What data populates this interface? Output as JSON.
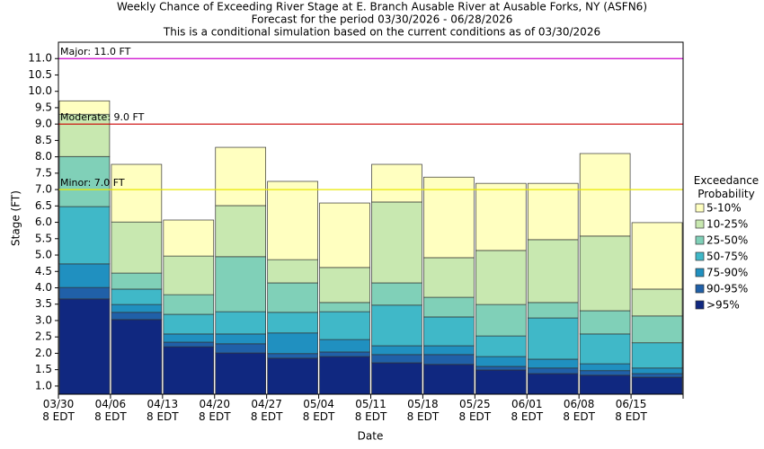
{
  "chart_data": {
    "type": "floating-bar",
    "title": "Weekly Chance of Exceeding River Stage at E. Branch Ausable River at Ausable Forks, NY (ASFN6)",
    "subtitle": "Forecast for the period 03/30/2026 - 06/28/2026",
    "note": "This is a conditional simulation based on the current conditions as of 03/30/2026",
    "x_label": "Date",
    "y_label": "Stage (FT)",
    "legend_title": "Exceedance\nProbability",
    "categories": [
      "03/30\n8 EDT",
      "04/06\n8 EDT",
      "04/13\n8 EDT",
      "04/20\n8 EDT",
      "04/27\n8 EDT",
      "05/04\n8 EDT",
      "05/11\n8 EDT",
      "05/18\n8 EDT",
      "05/25\n8 EDT",
      "06/01\n8 EDT",
      "06/08\n8 EDT",
      "06/15\n8 EDT"
    ],
    "series": [
      {
        "name": ">95%",
        "color": "#102880",
        "values": [
          3.66,
          3.03,
          2.2,
          2.01,
          1.85,
          1.9,
          1.71,
          1.66,
          1.49,
          1.38,
          1.33,
          1.27
        ]
      },
      {
        "name": "90-95%",
        "color": "#2060a8",
        "values": [
          4.01,
          3.25,
          2.34,
          2.29,
          1.99,
          2.04,
          1.96,
          1.96,
          1.6,
          1.55,
          1.47,
          1.38
        ]
      },
      {
        "name": "75-90%",
        "color": "#2090c0",
        "values": [
          4.73,
          3.49,
          2.59,
          2.59,
          2.62,
          2.42,
          2.23,
          2.23,
          1.9,
          1.82,
          1.68,
          1.55
        ]
      },
      {
        "name": "50-75%",
        "color": "#40b8c8",
        "values": [
          6.48,
          3.96,
          3.19,
          3.27,
          3.25,
          3.27,
          3.47,
          3.11,
          2.53,
          3.08,
          2.59,
          2.32
        ]
      },
      {
        "name": "25-50%",
        "color": "#80d0b8",
        "values": [
          8.01,
          4.45,
          3.79,
          4.95,
          4.15,
          3.55,
          4.15,
          3.71,
          3.49,
          3.55,
          3.3,
          3.14
        ]
      },
      {
        "name": "10-25%",
        "color": "#c8e8b0",
        "values": [
          9.3,
          6.01,
          4.97,
          6.51,
          4.86,
          4.62,
          6.62,
          4.92,
          5.14,
          5.47,
          5.58,
          3.96
        ]
      },
      {
        "name": "5-10%",
        "color": "#ffffc0",
        "values": [
          9.71,
          7.77,
          6.07,
          8.29,
          7.25,
          6.59,
          7.77,
          7.38,
          7.19,
          7.19,
          8.1,
          5.99
        ]
      }
    ],
    "reference_lines": [
      {
        "label": "Major: 11.0 FT",
        "value": 11,
        "color": "#cc00cc"
      },
      {
        "label": "Moderate: 9.0 FT",
        "value": 9,
        "color": "#cc0000"
      },
      {
        "label": "Minor: 7.0 FT",
        "value": 7,
        "color": "#e8e800"
      }
    ],
    "ylim": [
      0.75,
      11.5
    ],
    "yticks": [
      {
        "value": 1,
        "label": "1.0"
      },
      1.5,
      {
        "value": 2,
        "label": "2.0"
      },
      2.5,
      {
        "value": 3,
        "label": "3.0"
      },
      3.5,
      {
        "value": 4,
        "label": "4.0"
      },
      4.5,
      {
        "value": 5,
        "label": "5.0"
      },
      5.5,
      {
        "value": 6,
        "label": "6.0"
      },
      6.5,
      {
        "value": 7,
        "label": "7.0"
      },
      7.5,
      {
        "value": 8,
        "label": "8.0"
      },
      8.5,
      {
        "value": 9,
        "label": "9.0"
      },
      9.5,
      {
        "value": 10,
        "label": "10.0"
      },
      10.5,
      {
        "value": 11,
        "label": "11.0"
      }
    ],
    "grid": false
  }
}
